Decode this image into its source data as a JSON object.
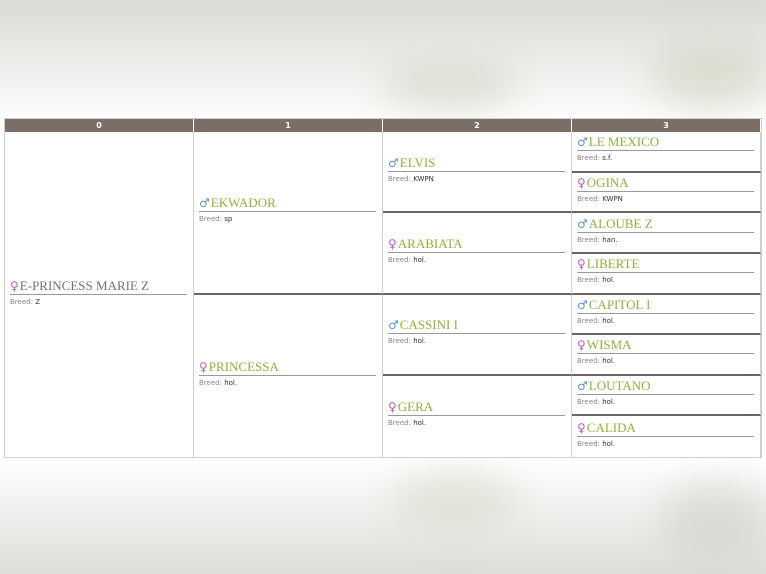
{
  "columns": [
    "0",
    "1",
    "2",
    "3"
  ],
  "breed_label": "Breed:",
  "colors": {
    "header": "#7a6e66",
    "name": "#8fb33a",
    "male": "#5a96c8",
    "female": "#c25bb5"
  },
  "icons": {
    "male": "♂",
    "female": "♀"
  },
  "horses": [
    {
      "gen": 0,
      "name": "E-PRINCESS MARIE Z",
      "sex": "female",
      "breed": "Z"
    },
    {
      "gen": 1,
      "name": "EKWADOR",
      "sex": "male",
      "breed": "sp"
    },
    {
      "gen": 1,
      "name": "PRINCESSA",
      "sex": "female",
      "breed": "hol."
    },
    {
      "gen": 2,
      "name": "ELVIS",
      "sex": "male",
      "breed": "KWPN"
    },
    {
      "gen": 2,
      "name": "ARABIATA",
      "sex": "female",
      "breed": "hol."
    },
    {
      "gen": 2,
      "name": "CASSINI I",
      "sex": "male",
      "breed": "hol."
    },
    {
      "gen": 2,
      "name": "GERA",
      "sex": "female",
      "breed": "hol."
    },
    {
      "gen": 3,
      "name": "LE MEXICO",
      "sex": "male",
      "breed": "s.f."
    },
    {
      "gen": 3,
      "name": "OGINA",
      "sex": "female",
      "breed": "KWPN"
    },
    {
      "gen": 3,
      "name": "ALOUBE Z",
      "sex": "male",
      "breed": "han."
    },
    {
      "gen": 3,
      "name": "LIBERTE",
      "sex": "female",
      "breed": "hol."
    },
    {
      "gen": 3,
      "name": "CAPITOL I",
      "sex": "male",
      "breed": "hol."
    },
    {
      "gen": 3,
      "name": "WISMA",
      "sex": "female",
      "breed": "hol."
    },
    {
      "gen": 3,
      "name": "LOUTANO",
      "sex": "male",
      "breed": "hol."
    },
    {
      "gen": 3,
      "name": "CALIDA",
      "sex": "female",
      "breed": "hol."
    }
  ]
}
